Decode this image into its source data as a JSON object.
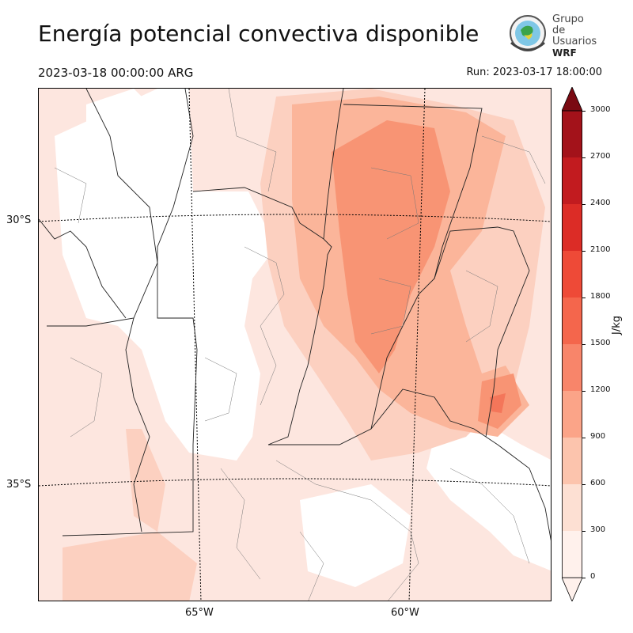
{
  "title": "Energía potencial convectiva disponible",
  "valid_time": "2023-03-18 00:00:00 ARG",
  "run_time": "Run: 2023-03-17 18:00:00",
  "logo": {
    "line1": "Grupo de",
    "line2": "Usuarios",
    "line3": "WRF",
    "icon": "globe-emblem-icon"
  },
  "map": {
    "lat_labels": [
      "30°S",
      "35°S"
    ],
    "lon_labels": [
      "65°W",
      "60°W"
    ],
    "field_colors": [
      "#fde6df",
      "#fcd0c0",
      "#fbb59a",
      "#f89474",
      "#f4765a"
    ]
  },
  "colorbar": {
    "unit": "J/kg",
    "ticks": [
      "0",
      "300",
      "600",
      "900",
      "1200",
      "1500",
      "1800",
      "2100",
      "2400",
      "2700",
      "3000"
    ],
    "colors": [
      "#fff1ec",
      "#fde0d3",
      "#fcc4ad",
      "#fba488",
      "#f8856a",
      "#f4664c",
      "#ee4a37",
      "#dc2c26",
      "#c21b1f",
      "#a3121a",
      "#7a0a12"
    ],
    "extend": "both"
  }
}
